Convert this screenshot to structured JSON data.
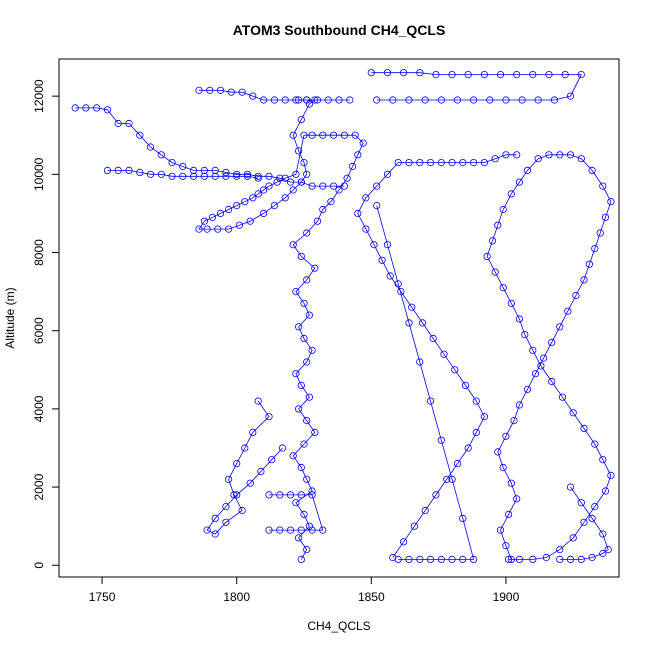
{
  "chart_data": {
    "type": "scatter",
    "title": "ATOM3 Southbound CH4_QCLS",
    "xlabel": "CH4_QCLS",
    "ylabel": "Altitude (m)",
    "xlim": [
      1734,
      1942
    ],
    "ylim": [
      -300,
      12950
    ],
    "xticks": [
      1750,
      1800,
      1850,
      1900
    ],
    "yticks": [
      0,
      2000,
      4000,
      6000,
      8000,
      10000,
      12000
    ],
    "marker": "open-circle",
    "connected": true,
    "grid": false,
    "color": "#0000ff",
    "series": [
      {
        "name": "",
        "x": [
          1824,
          1826,
          1823,
          1827,
          1825,
          1822,
          1828,
          1826,
          1824,
          1821,
          1825,
          1829,
          1826,
          1823,
          1827,
          1824,
          1822,
          1826,
          1828,
          1825,
          1823,
          1827,
          1825,
          1822,
          1826,
          1829,
          1824,
          1821,
          1826,
          1830,
          1832,
          1835,
          1838,
          1841,
          1843,
          1845,
          1847,
          1844,
          1840,
          1836,
          1832,
          1828,
          1825,
          1822,
          1818,
          1815,
          1812,
          1810,
          1808,
          1806,
          1803,
          1800,
          1797,
          1794,
          1791,
          1788,
          1786,
          1789,
          1793,
          1797,
          1801,
          1805,
          1810,
          1814,
          1818,
          1821,
          1824,
          1826,
          1825,
          1823,
          1821,
          1824,
          1827,
          1829,
          1826,
          1823
        ],
        "y": [
          150,
          400,
          700,
          1000,
          1300,
          1600,
          1900,
          2200,
          2500,
          2800,
          3100,
          3400,
          3700,
          4000,
          4300,
          4600,
          4900,
          5200,
          5500,
          5800,
          6100,
          6400,
          6700,
          7000,
          7300,
          7600,
          7900,
          8200,
          8500,
          8800,
          9100,
          9300,
          9600,
          9900,
          10200,
          10500,
          10800,
          11000,
          11000,
          11000,
          11000,
          11000,
          11000,
          10000,
          9900,
          9800,
          9700,
          9600,
          9500,
          9400,
          9300,
          9200,
          9100,
          9000,
          8900,
          8800,
          8600,
          8600,
          8600,
          8600,
          8700,
          8800,
          9000,
          9200,
          9400,
          9600,
          9800,
          10000,
          10300,
          10600,
          11000,
          11400,
          11800,
          11900,
          11900,
          11900
        ]
      },
      {
        "name": "",
        "x": [
          1902,
          1900,
          1898,
          1901,
          1904,
          1902,
          1899,
          1897,
          1900,
          1903,
          1905,
          1908,
          1911,
          1914,
          1917,
          1920,
          1923,
          1926,
          1929,
          1931,
          1933,
          1935,
          1937,
          1939,
          1936,
          1932,
          1928,
          1924,
          1920,
          1916,
          1912,
          1908,
          1905,
          1902,
          1899,
          1897,
          1895,
          1893,
          1896,
          1899,
          1902,
          1905,
          1907,
          1910,
          1913,
          1917,
          1921,
          1925,
          1929,
          1933,
          1936,
          1939,
          1937,
          1933,
          1929,
          1925,
          1920,
          1915,
          1910,
          1905,
          1901
        ],
        "y": [
          150,
          500,
          900,
          1300,
          1700,
          2100,
          2500,
          2900,
          3300,
          3700,
          4100,
          4500,
          4900,
          5300,
          5700,
          6100,
          6500,
          6900,
          7300,
          7700,
          8100,
          8500,
          8900,
          9300,
          9700,
          10100,
          10400,
          10500,
          10500,
          10500,
          10400,
          10100,
          9800,
          9500,
          9100,
          8700,
          8300,
          7900,
          7500,
          7100,
          6700,
          6300,
          5900,
          5500,
          5100,
          4700,
          4300,
          3900,
          3500,
          3100,
          2700,
          2300,
          1900,
          1500,
          1100,
          700,
          400,
          200,
          150,
          150,
          150
        ]
      },
      {
        "name": "",
        "x": [
          1858,
          1862,
          1866,
          1870,
          1874,
          1878,
          1882,
          1886,
          1889,
          1892,
          1889,
          1885,
          1881,
          1877,
          1873,
          1869,
          1865,
          1861,
          1857,
          1854,
          1851,
          1848,
          1845,
          1848,
          1852,
          1856,
          1860,
          1864,
          1868,
          1872,
          1876,
          1880,
          1884,
          1888,
          1892,
          1896,
          1900,
          1904
        ],
        "y": [
          200,
          600,
          1000,
          1400,
          1800,
          2200,
          2600,
          3000,
          3400,
          3800,
          4200,
          4600,
          5000,
          5400,
          5800,
          6200,
          6600,
          7000,
          7400,
          7800,
          8200,
          8600,
          9000,
          9400,
          9700,
          10000,
          10300,
          10300,
          10300,
          10300,
          10300,
          10300,
          10300,
          10300,
          10300,
          10400,
          10500,
          10500
        ]
      },
      {
        "name": "",
        "x": [
          1850,
          1856,
          1862,
          1868,
          1874,
          1880,
          1886,
          1892,
          1898,
          1904,
          1910,
          1916,
          1922,
          1928,
          1924,
          1918,
          1912,
          1906,
          1900,
          1894,
          1888,
          1882,
          1876,
          1870,
          1864,
          1858,
          1852
        ],
        "y": [
          12600,
          12600,
          12600,
          12600,
          12550,
          12550,
          12550,
          12550,
          12550,
          12550,
          12550,
          12550,
          12550,
          12550,
          12000,
          11900,
          11900,
          11900,
          11900,
          11900,
          11900,
          11900,
          11900,
          11900,
          11900,
          11900,
          11900
        ]
      },
      {
        "name": "",
        "x": [
          1740,
          1744,
          1748,
          1752,
          1756,
          1760,
          1764,
          1768,
          1772,
          1776,
          1780,
          1784,
          1788,
          1792,
          1796,
          1800,
          1804,
          1808,
          1812,
          1816,
          1820,
          1824,
          1828,
          1832,
          1836,
          1840
        ],
        "y": [
          11700,
          11700,
          11700,
          11650,
          11300,
          11300,
          11000,
          10700,
          10500,
          10300,
          10200,
          10100,
          10100,
          10100,
          10050,
          10000,
          10000,
          9950,
          9950,
          9900,
          9800,
          9800,
          9700,
          9700,
          9700,
          9700
        ]
      },
      {
        "name": "",
        "x": [
          1786,
          1790,
          1794,
          1798,
          1802,
          1806,
          1810,
          1814,
          1818,
          1822,
          1826,
          1830,
          1834,
          1838,
          1842
        ],
        "y": [
          12150,
          12150,
          12150,
          12100,
          12100,
          12000,
          11900,
          11900,
          11900,
          11900,
          11900,
          11900,
          11900,
          11900,
          11900
        ]
      },
      {
        "name": "",
        "x": [
          1752,
          1756,
          1760,
          1764,
          1768,
          1772,
          1776,
          1780,
          1784,
          1788,
          1792,
          1796,
          1800,
          1804,
          1808
        ],
        "y": [
          10100,
          10100,
          10100,
          10050,
          10000,
          10000,
          9950,
          9950,
          9950,
          9950,
          9950,
          9950,
          9950,
          9950,
          9900
        ]
      },
      {
        "name": "",
        "x": [
          1808,
          1812,
          1806,
          1803,
          1800,
          1797,
          1799,
          1802,
          1796,
          1792,
          1789,
          1792,
          1796,
          1800,
          1805,
          1809,
          1813,
          1817
        ],
        "y": [
          4200,
          3800,
          3400,
          3000,
          2600,
          2200,
          1800,
          1400,
          1100,
          800,
          900,
          1200,
          1500,
          1800,
          2100,
          2400,
          2700,
          3000
        ]
      },
      {
        "name": "",
        "x": [
          1812,
          1816,
          1820,
          1824,
          1828,
          1832,
          1828,
          1824,
          1820,
          1816,
          1812
        ],
        "y": [
          900,
          900,
          900,
          900,
          900,
          900,
          1800,
          1800,
          1800,
          1800,
          1800
        ]
      },
      {
        "name": "",
        "x": [
          1860,
          1864,
          1868,
          1872,
          1876,
          1880,
          1884,
          1888,
          1884,
          1880,
          1876,
          1872,
          1868,
          1864,
          1860,
          1856,
          1852
        ],
        "y": [
          150,
          150,
          150,
          150,
          150,
          150,
          150,
          150,
          1200,
          2200,
          3200,
          4200,
          5200,
          6200,
          7200,
          8200,
          9200
        ]
      },
      {
        "name": "",
        "x": [
          1920,
          1924,
          1928,
          1932,
          1936,
          1938,
          1936,
          1932,
          1928,
          1924
        ],
        "y": [
          150,
          150,
          150,
          200,
          300,
          400,
          800,
          1200,
          1600,
          2000
        ]
      }
    ]
  }
}
